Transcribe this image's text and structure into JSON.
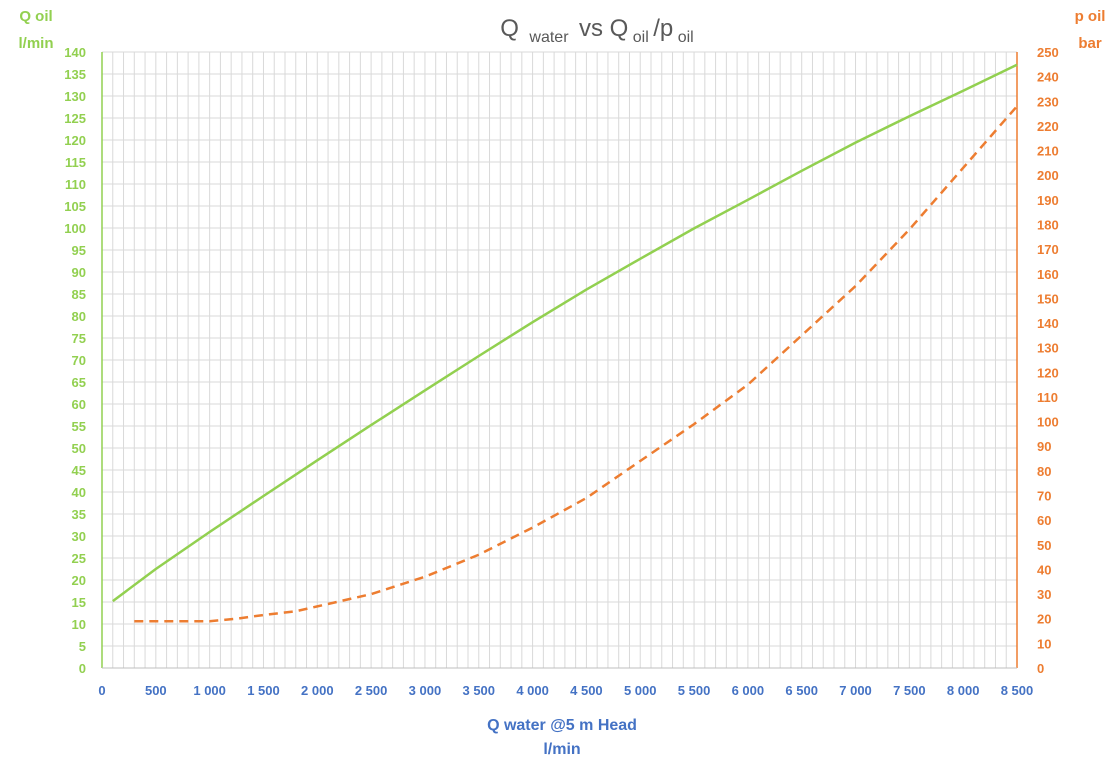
{
  "chart_data": {
    "type": "line",
    "title": {
      "q": "Q",
      "water_sub": "water",
      "vs": "vs Q",
      "oil_sub1": "oil",
      "slash_p": "/p",
      "oil_sub2": "oil"
    },
    "ylabel_left": [
      "Q oil",
      "l/min"
    ],
    "ylabel_right": [
      "p oil",
      "bar"
    ],
    "xlabel": [
      "Q water @5 m Head",
      "l/min"
    ],
    "xlim": [
      0,
      8500
    ],
    "ylim_left": [
      0,
      140
    ],
    "ylim_right": [
      0,
      250
    ],
    "x_ticks": [
      0,
      500,
      1000,
      1500,
      2000,
      2500,
      3000,
      3500,
      4000,
      4500,
      5000,
      5500,
      6000,
      6500,
      7000,
      7500,
      8000,
      8500
    ],
    "x_tick_labels": [
      "0",
      "500",
      "1 000",
      "1 500",
      "2 000",
      "2 500",
      "3 000",
      "3 500",
      "4 000",
      "4 500",
      "5 000",
      "5 500",
      "6 000",
      "6 500",
      "7 000",
      "7 500",
      "8 000",
      "8 500"
    ],
    "y_left_ticks": [
      0,
      5,
      10,
      15,
      20,
      25,
      30,
      35,
      40,
      45,
      50,
      55,
      60,
      65,
      70,
      75,
      80,
      85,
      90,
      95,
      100,
      105,
      110,
      115,
      120,
      125,
      130,
      135,
      140
    ],
    "y_right_ticks": [
      0,
      10,
      20,
      30,
      40,
      50,
      60,
      70,
      80,
      90,
      100,
      110,
      120,
      130,
      140,
      150,
      160,
      170,
      180,
      190,
      200,
      210,
      220,
      230,
      240,
      250
    ],
    "grid": true,
    "minor_x_step": 100,
    "series": [
      {
        "axis": "left",
        "style": "solid",
        "color": "#92d050",
        "x": [
          100,
          500,
          1000,
          1500,
          2000,
          2500,
          3000,
          3500,
          4000,
          4500,
          5000,
          5500,
          6000,
          6500,
          7000,
          7500,
          8000,
          8500
        ],
        "y": [
          15.2,
          22.5,
          30.9,
          39.1,
          47.2,
          55.2,
          63.1,
          70.9,
          78.6,
          86.0,
          93.0,
          99.9,
          106.4,
          113.0,
          119.4,
          125.4,
          131.2,
          137.1
        ]
      },
      {
        "axis": "right",
        "style": "dashed",
        "color": "#ed7d31",
        "x": [
          300,
          500,
          1000,
          1250,
          1500,
          1800,
          2000,
          2500,
          3000,
          3500,
          4000,
          4500,
          5000,
          5500,
          6000,
          6500,
          7000,
          7500,
          8000,
          8500
        ],
        "y": [
          19,
          19,
          19,
          20,
          21.5,
          23,
          25,
          30,
          37,
          46,
          57,
          69,
          84,
          99,
          115,
          135,
          155,
          178,
          203,
          228
        ]
      }
    ]
  },
  "colors": {
    "left_axis": "#92d050",
    "right_axis": "#ed7d31",
    "x_axis": "#4472c4",
    "title": "#595959",
    "grid": "#d9d9d9"
  }
}
